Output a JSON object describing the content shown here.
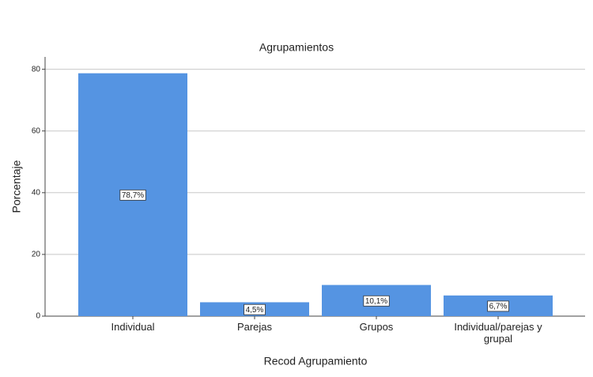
{
  "chart_data": {
    "type": "bar",
    "title": "Agrupamientos",
    "x_label": "Recod Agrupamiento",
    "y_label": "Porcentaje",
    "categories": [
      "Individual",
      "Parejas",
      "Grupos",
      "Individual/parejas y grupal"
    ],
    "values": [
      78.7,
      4.5,
      10.1,
      6.7
    ],
    "value_labels": [
      "78,7%",
      "4,5%",
      "10,1%",
      "6,7%"
    ],
    "color": "#5594e2",
    "ylim": [
      0,
      84
    ],
    "yticks": [
      0,
      20,
      40,
      60,
      80
    ],
    "grid": true
  }
}
